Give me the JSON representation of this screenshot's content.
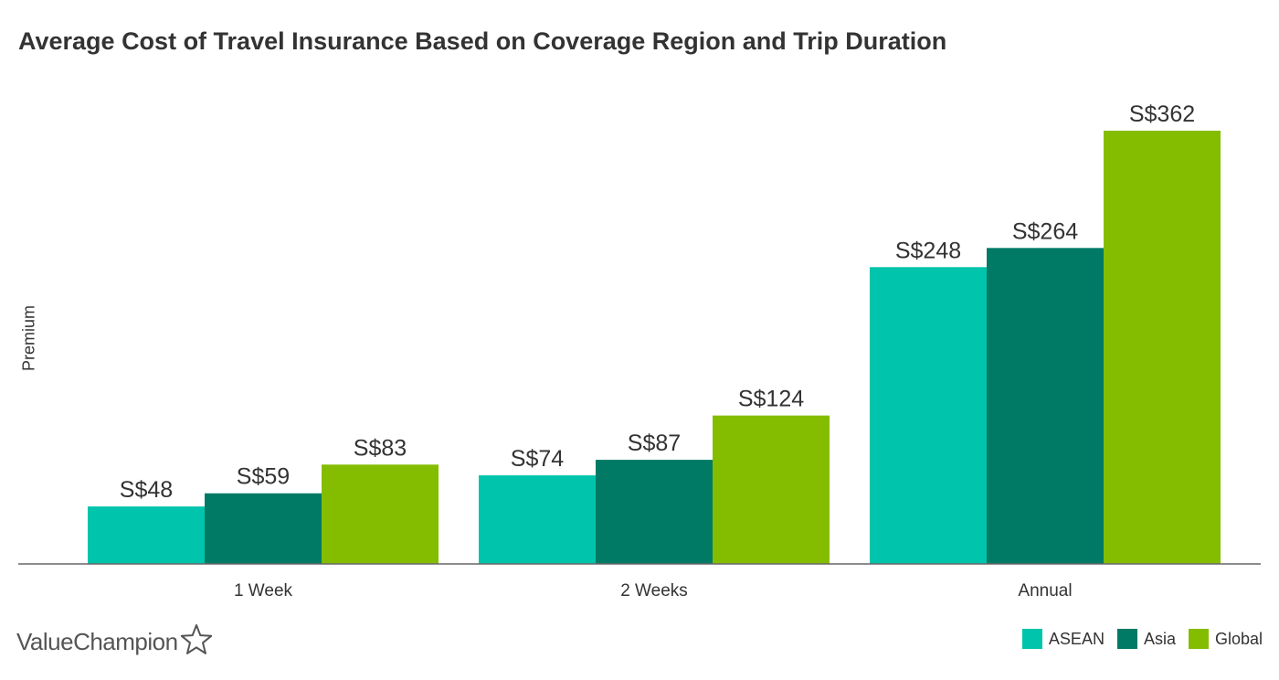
{
  "chart_data": {
    "type": "bar",
    "title": "Average Cost of Travel Insurance Based on Coverage Region and Trip Duration",
    "xlabel": "",
    "ylabel": "Premium",
    "categories": [
      "1 Week",
      "2 Weeks",
      "Annual"
    ],
    "series": [
      {
        "name": "ASEAN",
        "color": "#00c4ab",
        "values": [
          48,
          74,
          248
        ],
        "labels": [
          "S$48",
          "S$74",
          "S$248"
        ]
      },
      {
        "name": "Asia",
        "color": "#007a65",
        "values": [
          59,
          87,
          264
        ],
        "labels": [
          "S$59",
          "S$87",
          "S$264"
        ]
      },
      {
        "name": "Global",
        "color": "#84bd00",
        "values": [
          83,
          124,
          362
        ],
        "labels": [
          "S$83",
          "S$124",
          "S$362"
        ]
      }
    ],
    "ylim": [
      0,
      362
    ],
    "grid": false,
    "legend_position": "bottom-right"
  },
  "brand": {
    "name": "ValueChampion",
    "icon": "star-outline-icon"
  }
}
